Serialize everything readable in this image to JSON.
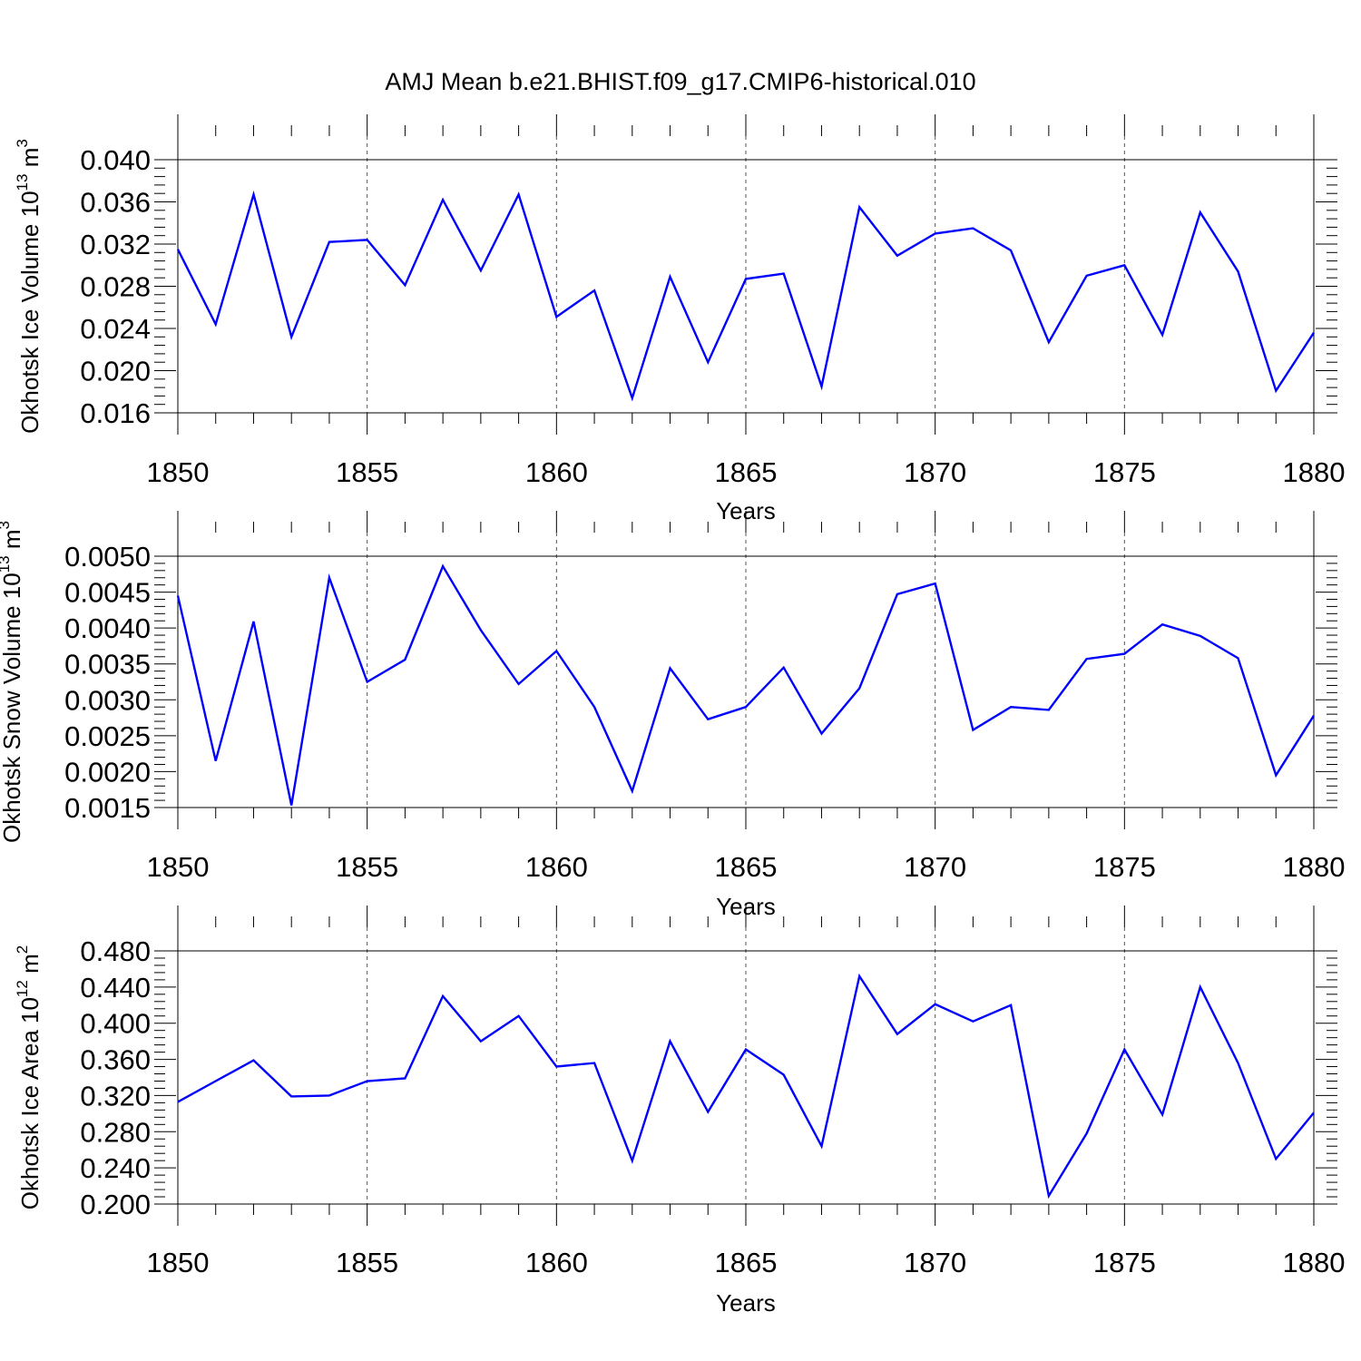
{
  "title": "AMJ Mean b.e21.BHIST.f09_g17.CMIP6-historical.010",
  "chart_data": [
    {
      "type": "line",
      "ylabel": "Okhotsk Ice Volume 10",
      "ylabel_exp": "13",
      "ylabel_unit": " m",
      "ylabel_unit_exp": "3",
      "xlabel": "Years",
      "xlim": [
        1850,
        1880
      ],
      "ylim": [
        0.016,
        0.04
      ],
      "xticks": [
        1850,
        1855,
        1860,
        1865,
        1870,
        1875,
        1880
      ],
      "yticks": [
        0.016,
        0.02,
        0.024,
        0.028,
        0.032,
        0.036,
        0.04
      ],
      "ytick_labels": [
        "0.016",
        "0.020",
        "0.024",
        "0.028",
        "0.032",
        "0.036",
        "0.040"
      ],
      "grid": "vertical-dashed-at-major-x",
      "color": "#0000ff",
      "x": [
        1850,
        1851,
        1852,
        1853,
        1854,
        1855,
        1856,
        1857,
        1858,
        1859,
        1860,
        1861,
        1862,
        1863,
        1864,
        1865,
        1866,
        1867,
        1868,
        1869,
        1870,
        1871,
        1872,
        1873,
        1874,
        1875,
        1876,
        1877,
        1878,
        1879,
        1880
      ],
      "values": [
        0.0315,
        0.0244,
        0.0367,
        0.0232,
        0.0322,
        0.0324,
        0.0281,
        0.0362,
        0.0295,
        0.0367,
        0.0251,
        0.0276,
        0.0174,
        0.0289,
        0.0208,
        0.0287,
        0.0292,
        0.0185,
        0.0355,
        0.0309,
        0.033,
        0.0335,
        0.0314,
        0.0227,
        0.029,
        0.03,
        0.0234,
        0.035,
        0.0294,
        0.0181,
        0.0236
      ]
    },
    {
      "type": "line",
      "ylabel": "Okhotsk Snow Volume 10",
      "ylabel_exp": "13",
      "ylabel_unit": " m",
      "ylabel_unit_exp": "3",
      "xlabel": "Years",
      "xlim": [
        1850,
        1880
      ],
      "ylim": [
        0.0015,
        0.005
      ],
      "xticks": [
        1850,
        1855,
        1860,
        1865,
        1870,
        1875,
        1880
      ],
      "yticks": [
        0.0015,
        0.002,
        0.0025,
        0.003,
        0.0035,
        0.004,
        0.0045,
        0.005
      ],
      "ytick_labels": [
        "0.0015",
        "0.0020",
        "0.0025",
        "0.0030",
        "0.0035",
        "0.0040",
        "0.0045",
        "0.0050"
      ],
      "grid": "vertical-dashed-at-major-x",
      "color": "#0000ff",
      "x": [
        1850,
        1851,
        1852,
        1853,
        1854,
        1855,
        1856,
        1857,
        1858,
        1859,
        1860,
        1861,
        1862,
        1863,
        1864,
        1865,
        1866,
        1867,
        1868,
        1869,
        1870,
        1871,
        1872,
        1873,
        1874,
        1875,
        1876,
        1877,
        1878,
        1879,
        1880
      ],
      "values": [
        0.00445,
        0.00215,
        0.00409,
        0.00153,
        0.0047,
        0.00325,
        0.00356,
        0.00486,
        0.00397,
        0.00322,
        0.00368,
        0.0029,
        0.00173,
        0.00344,
        0.00273,
        0.0029,
        0.00345,
        0.00253,
        0.00316,
        0.00447,
        0.00462,
        0.00258,
        0.0029,
        0.00286,
        0.00357,
        0.00364,
        0.00405,
        0.00389,
        0.00358,
        0.00195,
        0.00278
      ]
    },
    {
      "type": "line",
      "ylabel": "Okhotsk Ice Area 10",
      "ylabel_exp": "12",
      "ylabel_unit": " m",
      "ylabel_unit_exp": "2",
      "xlabel": "Years",
      "xlim": [
        1850,
        1880
      ],
      "ylim": [
        0.2,
        0.48
      ],
      "xticks": [
        1850,
        1855,
        1860,
        1865,
        1870,
        1875,
        1880
      ],
      "yticks": [
        0.2,
        0.24,
        0.28,
        0.32,
        0.36,
        0.4,
        0.44,
        0.48
      ],
      "ytick_labels": [
        "0.200",
        "0.240",
        "0.280",
        "0.320",
        "0.360",
        "0.400",
        "0.440",
        "0.480"
      ],
      "grid": "vertical-dashed-at-major-x",
      "color": "#0000ff",
      "x": [
        1850,
        1851,
        1852,
        1853,
        1854,
        1855,
        1856,
        1857,
        1858,
        1859,
        1860,
        1861,
        1862,
        1863,
        1864,
        1865,
        1866,
        1867,
        1868,
        1869,
        1870,
        1871,
        1872,
        1873,
        1874,
        1875,
        1876,
        1877,
        1878,
        1879,
        1880
      ],
      "values": [
        0.313,
        0.336,
        0.359,
        0.319,
        0.32,
        0.336,
        0.339,
        0.43,
        0.38,
        0.408,
        0.352,
        0.356,
        0.248,
        0.38,
        0.302,
        0.371,
        0.343,
        0.264,
        0.452,
        0.388,
        0.421,
        0.402,
        0.42,
        0.209,
        0.278,
        0.371,
        0.299,
        0.44,
        0.356,
        0.25,
        0.301
      ]
    }
  ]
}
